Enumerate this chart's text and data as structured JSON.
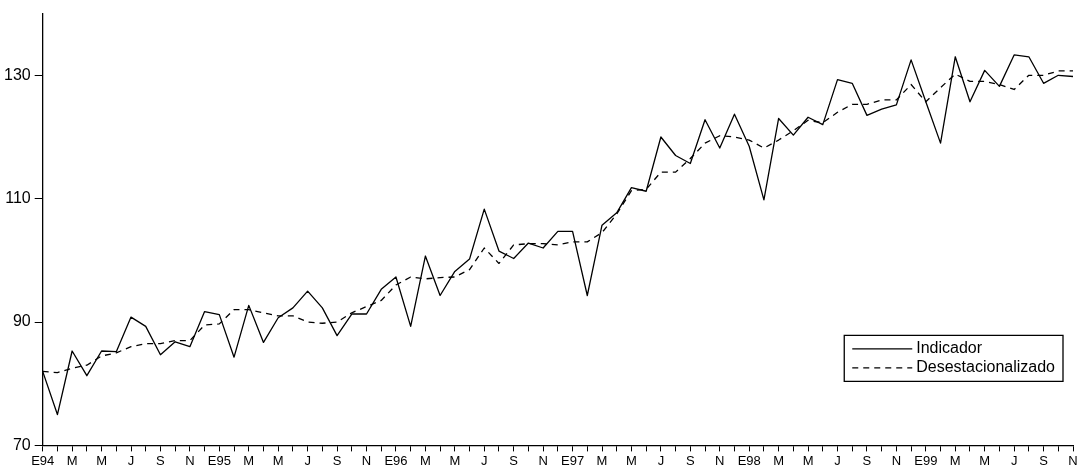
{
  "chart_data": {
    "type": "line",
    "categories": [
      "E94",
      null,
      "M",
      null,
      "M",
      null,
      "J",
      null,
      "S",
      null,
      "N",
      null,
      "E95",
      null,
      "M",
      null,
      "M",
      null,
      "J",
      null,
      "S",
      null,
      "N",
      null,
      "E96",
      null,
      "M",
      null,
      "M",
      null,
      "J",
      null,
      "S",
      null,
      "N",
      null,
      "E97",
      null,
      "M",
      null,
      "M",
      null,
      "J",
      null,
      "S",
      null,
      "N",
      null,
      "E98",
      null,
      "M",
      null,
      "M",
      null,
      "J",
      null,
      "S",
      null,
      "N",
      null,
      "E99",
      null,
      "M",
      null,
      "M",
      null,
      "J",
      null,
      "S",
      null,
      "N"
    ],
    "series": [
      {
        "name": "Indicador",
        "color": "#000000",
        "line_style": "solid",
        "values": [
          82,
          75,
          85.3,
          81.3,
          85.3,
          85.2,
          90.8,
          89.3,
          84.7,
          86.8,
          86,
          91.7,
          91.2,
          84.3,
          92.7,
          86.7,
          90.7,
          92.3,
          95,
          92.3,
          87.8,
          91.3,
          91.3,
          95.3,
          97.3,
          89.3,
          100.7,
          94.3,
          98.2,
          100.2,
          108.3,
          101.5,
          100.3,
          102.8,
          102,
          104.7,
          104.7,
          94.3,
          105.7,
          107.7,
          111.8,
          111.2,
          120,
          117,
          115.7,
          122.8,
          118.2,
          123.7,
          118.5,
          109.8,
          123,
          120.3,
          123.2,
          122,
          129.3,
          128.7,
          123.5,
          124.5,
          125.2,
          132.5,
          125.7,
          119,
          133,
          125.7,
          130.8,
          128.2,
          133.3,
          133,
          128.7,
          130,
          129.8
        ]
      },
      {
        "name": "Desestacionalizado",
        "color": "#000000",
        "line_style": "dashed",
        "values": [
          82,
          81.8,
          82.5,
          83,
          84.5,
          85,
          86,
          86.5,
          86.5,
          87,
          87,
          89.5,
          89.7,
          92,
          92,
          91.5,
          91,
          91,
          90,
          89.8,
          90,
          91.5,
          92.5,
          93.5,
          96,
          97.3,
          97,
          97.2,
          97.3,
          98.5,
          102,
          99.5,
          102.5,
          102.7,
          102.7,
          102.5,
          103,
          103,
          104.5,
          107.5,
          111.3,
          111.5,
          114.3,
          114.3,
          116.5,
          119,
          120.2,
          120,
          119.5,
          118.2,
          119.5,
          121,
          122.7,
          122.3,
          124,
          125.3,
          125.3,
          126,
          126,
          128.5,
          125.7,
          128,
          130.2,
          129,
          129,
          128.5,
          127.7,
          130,
          130,
          130.7,
          130.7
        ]
      }
    ],
    "ylim": [
      70,
      140
    ],
    "yticks": [
      70,
      90,
      110,
      130
    ],
    "grid": false,
    "legend": "bottom right",
    "marker": "none"
  }
}
